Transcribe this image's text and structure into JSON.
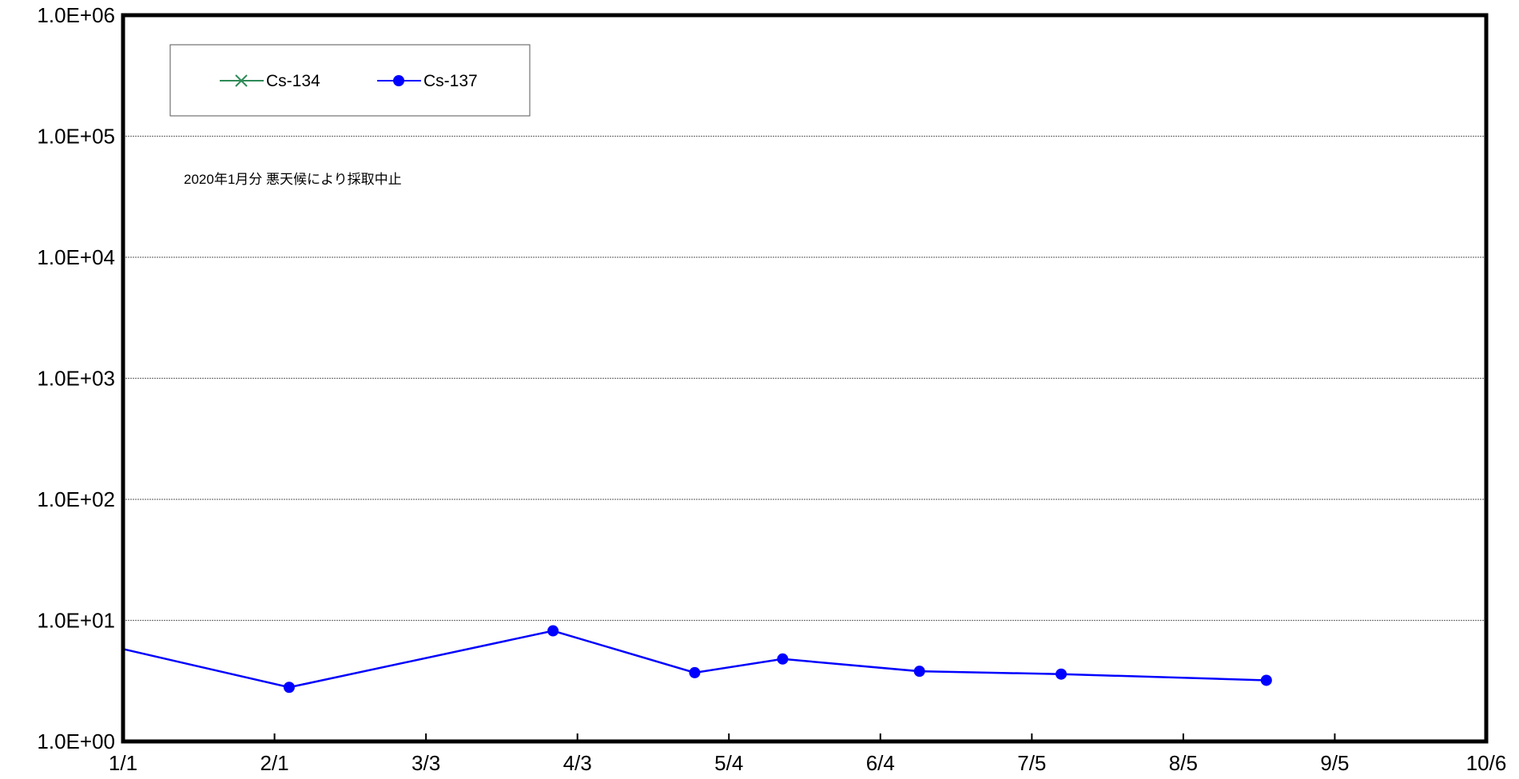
{
  "chart_data": {
    "type": "line",
    "xlabel": "",
    "ylabel": "",
    "yscale": "log",
    "ylim": [
      1,
      1000000
    ],
    "xlim": [
      "1/1",
      "10/6"
    ],
    "grid": true,
    "legend_position": "top-left",
    "y_tick_labels": [
      "1.0E+00",
      "1.0E+01",
      "1.0E+02",
      "1.0E+03",
      "1.0E+04",
      "1.0E+05",
      "1.0E+06"
    ],
    "x_tick_labels": [
      "1/1",
      "2/1",
      "3/3",
      "4/3",
      "5/4",
      "6/4",
      "7/5",
      "8/5",
      "9/5",
      "10/6"
    ],
    "annotation": "2020年1月分  悪天候により採取中止",
    "series": [
      {
        "name": "Cs-134",
        "color": "#2e8b57",
        "marker": "x",
        "x": [],
        "y": []
      },
      {
        "name": "Cs-137",
        "color": "#0000ff",
        "marker": "circle",
        "x": [
          "1/1",
          "2/4",
          "3/29",
          "4/27",
          "5/15",
          "6/12",
          "7/11",
          "8/22"
        ],
        "y": [
          5.8,
          2.8,
          8.2,
          3.7,
          4.8,
          3.8,
          3.6,
          3.2
        ]
      }
    ]
  }
}
